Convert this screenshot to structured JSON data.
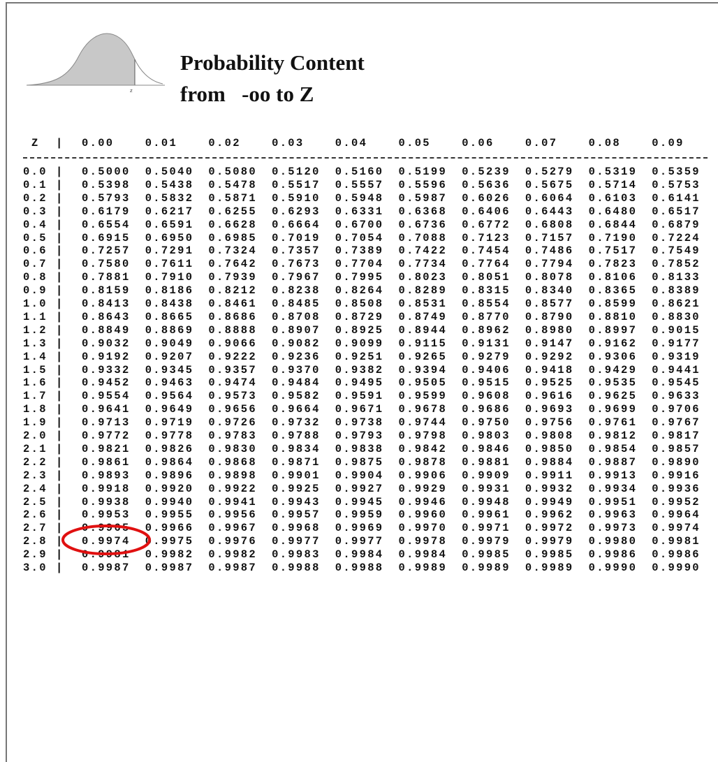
{
  "header": {
    "title": "Probability Content",
    "subtitle": "from   -oo to Z",
    "figure_label": "z"
  },
  "table": {
    "corner": "Z",
    "columns": [
      "0.00",
      "0.01",
      "0.02",
      "0.03",
      "0.04",
      "0.05",
      "0.06",
      "0.07",
      "0.08",
      "0.09"
    ],
    "rows": [
      {
        "z": "0.0",
        "values": [
          "0.5000",
          "0.5040",
          "0.5080",
          "0.5120",
          "0.5160",
          "0.5199",
          "0.5239",
          "0.5279",
          "0.5319",
          "0.5359"
        ]
      },
      {
        "z": "0.1",
        "values": [
          "0.5398",
          "0.5438",
          "0.5478",
          "0.5517",
          "0.5557",
          "0.5596",
          "0.5636",
          "0.5675",
          "0.5714",
          "0.5753"
        ]
      },
      {
        "z": "0.2",
        "values": [
          "0.5793",
          "0.5832",
          "0.5871",
          "0.5910",
          "0.5948",
          "0.5987",
          "0.6026",
          "0.6064",
          "0.6103",
          "0.6141"
        ]
      },
      {
        "z": "0.3",
        "values": [
          "0.6179",
          "0.6217",
          "0.6255",
          "0.6293",
          "0.6331",
          "0.6368",
          "0.6406",
          "0.6443",
          "0.6480",
          "0.6517"
        ]
      },
      {
        "z": "0.4",
        "values": [
          "0.6554",
          "0.6591",
          "0.6628",
          "0.6664",
          "0.6700",
          "0.6736",
          "0.6772",
          "0.6808",
          "0.6844",
          "0.6879"
        ]
      },
      {
        "z": "0.5",
        "values": [
          "0.6915",
          "0.6950",
          "0.6985",
          "0.7019",
          "0.7054",
          "0.7088",
          "0.7123",
          "0.7157",
          "0.7190",
          "0.7224"
        ]
      },
      {
        "z": "0.6",
        "values": [
          "0.7257",
          "0.7291",
          "0.7324",
          "0.7357",
          "0.7389",
          "0.7422",
          "0.7454",
          "0.7486",
          "0.7517",
          "0.7549"
        ]
      },
      {
        "z": "0.7",
        "values": [
          "0.7580",
          "0.7611",
          "0.7642",
          "0.7673",
          "0.7704",
          "0.7734",
          "0.7764",
          "0.7794",
          "0.7823",
          "0.7852"
        ]
      },
      {
        "z": "0.8",
        "values": [
          "0.7881",
          "0.7910",
          "0.7939",
          "0.7967",
          "0.7995",
          "0.8023",
          "0.8051",
          "0.8078",
          "0.8106",
          "0.8133"
        ]
      },
      {
        "z": "0.9",
        "values": [
          "0.8159",
          "0.8186",
          "0.8212",
          "0.8238",
          "0.8264",
          "0.8289",
          "0.8315",
          "0.8340",
          "0.8365",
          "0.8389"
        ]
      },
      {
        "z": "1.0",
        "values": [
          "0.8413",
          "0.8438",
          "0.8461",
          "0.8485",
          "0.8508",
          "0.8531",
          "0.8554",
          "0.8577",
          "0.8599",
          "0.8621"
        ]
      },
      {
        "z": "1.1",
        "values": [
          "0.8643",
          "0.8665",
          "0.8686",
          "0.8708",
          "0.8729",
          "0.8749",
          "0.8770",
          "0.8790",
          "0.8810",
          "0.8830"
        ]
      },
      {
        "z": "1.2",
        "values": [
          "0.8849",
          "0.8869",
          "0.8888",
          "0.8907",
          "0.8925",
          "0.8944",
          "0.8962",
          "0.8980",
          "0.8997",
          "0.9015"
        ]
      },
      {
        "z": "1.3",
        "values": [
          "0.9032",
          "0.9049",
          "0.9066",
          "0.9082",
          "0.9099",
          "0.9115",
          "0.9131",
          "0.9147",
          "0.9162",
          "0.9177"
        ]
      },
      {
        "z": "1.4",
        "values": [
          "0.9192",
          "0.9207",
          "0.9222",
          "0.9236",
          "0.9251",
          "0.9265",
          "0.9279",
          "0.9292",
          "0.9306",
          "0.9319"
        ]
      },
      {
        "z": "1.5",
        "values": [
          "0.9332",
          "0.9345",
          "0.9357",
          "0.9370",
          "0.9382",
          "0.9394",
          "0.9406",
          "0.9418",
          "0.9429",
          "0.9441"
        ]
      },
      {
        "z": "1.6",
        "values": [
          "0.9452",
          "0.9463",
          "0.9474",
          "0.9484",
          "0.9495",
          "0.9505",
          "0.9515",
          "0.9525",
          "0.9535",
          "0.9545"
        ]
      },
      {
        "z": "1.7",
        "values": [
          "0.9554",
          "0.9564",
          "0.9573",
          "0.9582",
          "0.9591",
          "0.9599",
          "0.9608",
          "0.9616",
          "0.9625",
          "0.9633"
        ]
      },
      {
        "z": "1.8",
        "values": [
          "0.9641",
          "0.9649",
          "0.9656",
          "0.9664",
          "0.9671",
          "0.9678",
          "0.9686",
          "0.9693",
          "0.9699",
          "0.9706"
        ]
      },
      {
        "z": "1.9",
        "values": [
          "0.9713",
          "0.9719",
          "0.9726",
          "0.9732",
          "0.9738",
          "0.9744",
          "0.9750",
          "0.9756",
          "0.9761",
          "0.9767"
        ]
      },
      {
        "z": "2.0",
        "values": [
          "0.9772",
          "0.9778",
          "0.9783",
          "0.9788",
          "0.9793",
          "0.9798",
          "0.9803",
          "0.9808",
          "0.9812",
          "0.9817"
        ]
      },
      {
        "z": "2.1",
        "values": [
          "0.9821",
          "0.9826",
          "0.9830",
          "0.9834",
          "0.9838",
          "0.9842",
          "0.9846",
          "0.9850",
          "0.9854",
          "0.9857"
        ]
      },
      {
        "z": "2.2",
        "values": [
          "0.9861",
          "0.9864",
          "0.9868",
          "0.9871",
          "0.9875",
          "0.9878",
          "0.9881",
          "0.9884",
          "0.9887",
          "0.9890"
        ]
      },
      {
        "z": "2.3",
        "values": [
          "0.9893",
          "0.9896",
          "0.9898",
          "0.9901",
          "0.9904",
          "0.9906",
          "0.9909",
          "0.9911",
          "0.9913",
          "0.9916"
        ]
      },
      {
        "z": "2.4",
        "values": [
          "0.9918",
          "0.9920",
          "0.9922",
          "0.9925",
          "0.9927",
          "0.9929",
          "0.9931",
          "0.9932",
          "0.9934",
          "0.9936"
        ]
      },
      {
        "z": "2.5",
        "values": [
          "0.9938",
          "0.9940",
          "0.9941",
          "0.9943",
          "0.9945",
          "0.9946",
          "0.9948",
          "0.9949",
          "0.9951",
          "0.9952"
        ]
      },
      {
        "z": "2.6",
        "values": [
          "0.9953",
          "0.9955",
          "0.9956",
          "0.9957",
          "0.9959",
          "0.9960",
          "0.9961",
          "0.9962",
          "0.9963",
          "0.9964"
        ]
      },
      {
        "z": "2.7",
        "values": [
          "0.9965",
          "0.9966",
          "0.9967",
          "0.9968",
          "0.9969",
          "0.9970",
          "0.9971",
          "0.9972",
          "0.9973",
          "0.9974"
        ]
      },
      {
        "z": "2.8",
        "values": [
          "0.9974",
          "0.9975",
          "0.9976",
          "0.9977",
          "0.9977",
          "0.9978",
          "0.9979",
          "0.9979",
          "0.9980",
          "0.9981"
        ]
      },
      {
        "z": "2.9",
        "values": [
          "0.9981",
          "0.9982",
          "0.9982",
          "0.9983",
          "0.9984",
          "0.9984",
          "0.9985",
          "0.9985",
          "0.9986",
          "0.9986"
        ]
      },
      {
        "z": "3.0",
        "values": [
          "0.9987",
          "0.9987",
          "0.9987",
          "0.9988",
          "0.9988",
          "0.9989",
          "0.9989",
          "0.9989",
          "0.9990",
          "0.9990"
        ]
      }
    ]
  }
}
